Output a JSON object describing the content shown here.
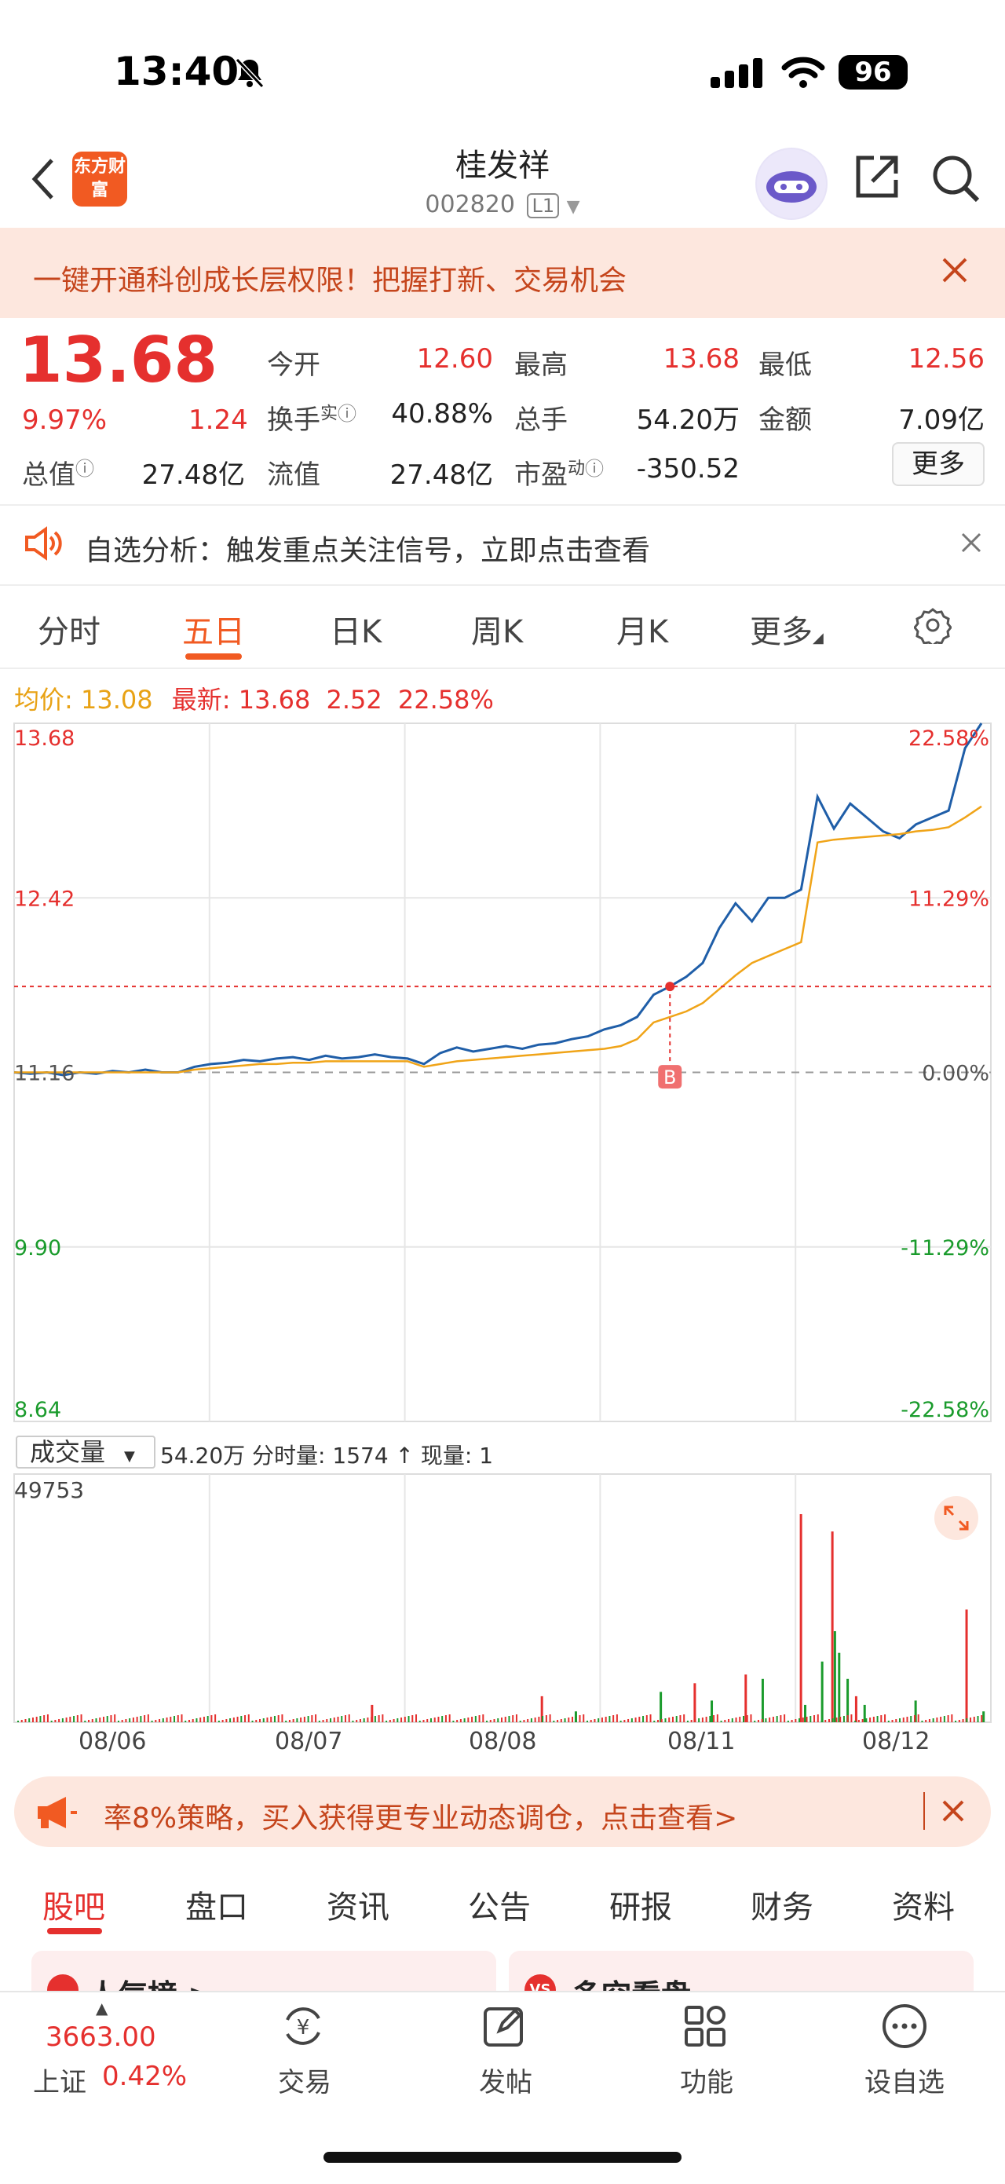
{
  "status_bar": {
    "time": "13:40",
    "battery": "96"
  },
  "header": {
    "logo_text": "东方财富",
    "stock_name": "桂发祥",
    "stock_code": "002820",
    "level": "L1"
  },
  "banner": {
    "text": "一键开通科创成长层权限！把握打新、交易机会"
  },
  "quote": {
    "price": "13.68",
    "change_pct": "9.97%",
    "change_amt": "1.24",
    "open_label": "今开",
    "open": "12.60",
    "high_label": "最高",
    "high": "13.68",
    "low_label": "最低",
    "low": "12.56",
    "turnover_label": "换手",
    "turnover_sup": "实",
    "turnover": "40.88%",
    "volume_label": "总手",
    "volume": "54.20万",
    "amount_label": "金额",
    "amount": "7.09亿",
    "total_value_label": "总值",
    "total_value": "27.48亿",
    "float_value_label": "流值",
    "float_value": "27.48亿",
    "pe_label": "市盈",
    "pe_sup": "动",
    "pe": "-350.52",
    "more_label": "更多"
  },
  "alert": {
    "text": "自选分析：触发重点关注信号，立即点击查看"
  },
  "period_tabs": [
    "分时",
    "五日",
    "日K",
    "周K",
    "月K",
    "更多"
  ],
  "active_period": "五日",
  "stats": {
    "avg_label": "均价:",
    "avg": "13.08",
    "latest_label": "最新:",
    "latest": "13.68",
    "chg": "2.52",
    "chg_pct": "22.58%"
  },
  "chart_data": {
    "type": "line",
    "title": "",
    "series": [
      {
        "name": "",
        "values": [
          11.16,
          11.15,
          11.16,
          11.14,
          11.16,
          11.15,
          11.17,
          11.16,
          11.18,
          11.16,
          11.16,
          11.2,
          11.22,
          11.23,
          11.25,
          11.24,
          11.26,
          11.27,
          11.25,
          11.28,
          11.26,
          11.27,
          11.29,
          11.27,
          11.26,
          11.22,
          11.3,
          11.34,
          11.31,
          11.33,
          11.35,
          11.33,
          11.36,
          11.37,
          11.4,
          11.42,
          11.47,
          11.5,
          11.56,
          11.72,
          11.78,
          11.85,
          11.95,
          12.2,
          12.38,
          12.25,
          12.42,
          12.42,
          12.48,
          13.15,
          12.92,
          13.1,
          13.0,
          12.9,
          12.85,
          12.95,
          13.0,
          13.05,
          13.5,
          13.68
        ]
      },
      {
        "name": "",
        "values": [
          11.16,
          11.16,
          11.16,
          11.16,
          11.16,
          11.16,
          11.16,
          11.16,
          11.16,
          11.16,
          11.16,
          11.18,
          11.19,
          11.2,
          11.21,
          11.22,
          11.22,
          11.23,
          11.23,
          11.24,
          11.24,
          11.24,
          11.24,
          11.24,
          11.24,
          11.2,
          11.22,
          11.24,
          11.25,
          11.26,
          11.27,
          11.28,
          11.29,
          11.3,
          11.31,
          11.32,
          11.33,
          11.35,
          11.4,
          11.52,
          11.56,
          11.6,
          11.66,
          11.76,
          11.86,
          11.95,
          12.0,
          12.05,
          12.1,
          12.82,
          12.84,
          12.85,
          12.86,
          12.87,
          12.88,
          12.9,
          12.91,
          12.93,
          13.0,
          13.08
        ]
      }
    ],
    "x_labels": [
      "08/06",
      "08/07",
      "08/08",
      "08/11",
      "08/12"
    ],
    "y_ticks_left": [
      "13.68",
      "12.42",
      "11.16",
      "9.90",
      "8.64"
    ],
    "y_ticks_right": [
      "22.58%",
      "11.29%",
      "0.00%",
      "-11.29%",
      "-22.58%"
    ],
    "ylim": [
      8.64,
      13.68
    ],
    "pre_close": 11.16,
    "marker_label": "B",
    "volume_max_label": "49753",
    "colors": {
      "price": "#1f5ea8",
      "avg": "#f0a418",
      "up": "#e5302e",
      "down": "#1a9b2c"
    }
  },
  "volume_header": {
    "select_label": "成交量",
    "info": "54.20万 分时量: 1574 ↑ 现量: 1"
  },
  "ad": {
    "text": "率8%策略，买入获得更专业动态调仓，点击查看>"
  },
  "content_tabs": [
    "股吧",
    "盘口",
    "资讯",
    "公告",
    "研报",
    "财务",
    "资料"
  ],
  "cards": {
    "left": "人气榜 >",
    "right": "多空看盘"
  },
  "bottom_nav": {
    "index_value": "3663.00",
    "index_name": "上证",
    "index_chg": "0.42%",
    "items": [
      "交易",
      "发帖",
      "功能",
      "设自选"
    ]
  }
}
